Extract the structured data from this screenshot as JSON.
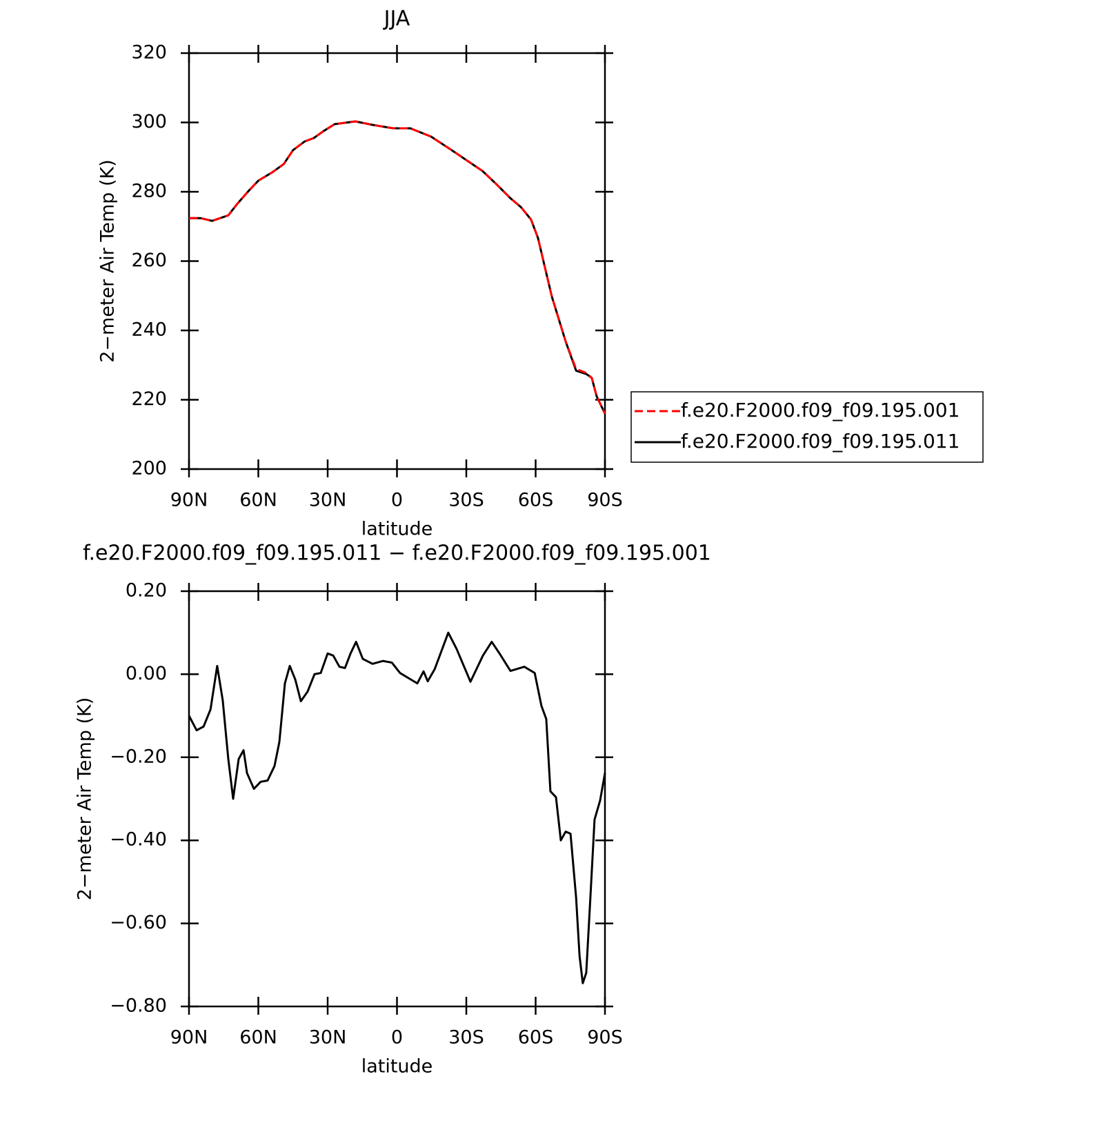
{
  "chart_data": [
    {
      "type": "line",
      "title": "JJA",
      "xlabel": "latitude",
      "ylabel": "2−meter Air Temp (K)",
      "xlim": [
        90,
        -90
      ],
      "ylim": [
        200,
        320
      ],
      "xticks": [
        {
          "value": 90,
          "label": "90N"
        },
        {
          "value": 60,
          "label": "60N"
        },
        {
          "value": 30,
          "label": "30N"
        },
        0,
        {
          "value": -30,
          "label": "30S"
        },
        {
          "value": -60,
          "label": "60S"
        },
        {
          "value": -90,
          "label": "90S"
        }
      ],
      "yticks": [
        200,
        220,
        240,
        260,
        280,
        300,
        320
      ],
      "legend": "outside-right",
      "x": [
        90,
        85,
        80,
        73,
        69,
        64,
        60,
        54,
        49,
        45,
        40,
        36,
        31.8,
        27,
        18,
        10.6,
        1.6,
        -5.8,
        -14.8,
        -23.7,
        -31.2,
        -37,
        -43,
        -49,
        -53.6,
        -58,
        -61,
        -67,
        -73,
        -77.5,
        -82,
        -84.3,
        -86.4,
        -90
      ],
      "series": [
        {
          "name": "f.e20.F2000.f09_f09.195.001",
          "color": "#ff0000",
          "style": "dashed",
          "values": [
            272.4,
            272.4,
            271.6,
            273.2,
            276.6,
            280.4,
            283.2,
            285.6,
            288,
            292,
            294.5,
            295.5,
            297.5,
            299.5,
            300.3,
            299.3,
            298.3,
            298.3,
            295.9,
            292,
            288.6,
            286,
            282.2,
            278.2,
            275.6,
            272,
            266.7,
            249.8,
            236.8,
            228.9,
            227.7,
            226.3,
            221,
            216
          ]
        },
        {
          "name": "f.e20.F2000.f09_f09.195.011",
          "color": "#000000",
          "style": "solid",
          "values": [
            272.4,
            272.4,
            271.6,
            273.2,
            276.6,
            280.4,
            283.2,
            285.6,
            288,
            292,
            294.5,
            295.5,
            297.5,
            299.5,
            300.3,
            299.3,
            298.3,
            298.3,
            295.9,
            292,
            288.6,
            286,
            282.2,
            278.2,
            275.6,
            272,
            266.7,
            249.8,
            236.8,
            228.4,
            227.4,
            226.3,
            221,
            216
          ]
        }
      ]
    },
    {
      "type": "line",
      "title": "f.e20.F2000.f09_f09.195.011 − f.e20.F2000.f09_f09.195.001",
      "xlabel": "latitude",
      "ylabel": "2−meter Air Temp (K)",
      "xlim": [
        90,
        -90
      ],
      "ylim": [
        -0.8,
        0.2
      ],
      "xticks": [
        {
          "value": 90,
          "label": "90N"
        },
        {
          "value": 60,
          "label": "60N"
        },
        {
          "value": 30,
          "label": "30N"
        },
        0,
        {
          "value": -30,
          "label": "30S"
        },
        {
          "value": -60,
          "label": "60S"
        },
        {
          "value": -90,
          "label": "90S"
        }
      ],
      "yticks": [
        {
          "value": -0.8,
          "label": "−0.80"
        },
        {
          "value": -0.6,
          "label": "−0.60"
        },
        {
          "value": -0.4,
          "label": "−0.40"
        },
        {
          "value": -0.2,
          "label": "−0.20"
        },
        {
          "value": 0,
          "label": "0.00"
        },
        {
          "value": 0.2,
          "label": "0.20"
        }
      ],
      "x": [
        90,
        86.7,
        83.7,
        80.7,
        77.8,
        75.4,
        73,
        70.9,
        68.5,
        66.4,
        64.9,
        61.9,
        59,
        56,
        53,
        50.9,
        48.5,
        46.4,
        44,
        41.6,
        38.7,
        35.7,
        33,
        30,
        27.6,
        24.9,
        22.5,
        20.1,
        17.7,
        14.8,
        10.6,
        6.1,
        2.2,
        -1.3,
        -6.1,
        -8.8,
        -11.5,
        -13.3,
        -16.3,
        -22.2,
        -25.8,
        -31.8,
        -37.2,
        -41,
        -44.6,
        -49.1,
        -55.1,
        -59.6,
        -62.5,
        -64.6,
        -66.4,
        -68.8,
        -70.9,
        -73,
        -75.1,
        -77.5,
        -79,
        -80.4,
        -81.9,
        -83.7,
        -85.5,
        -87.9,
        -90
      ],
      "series": [
        {
          "color": "#000000",
          "style": "solid",
          "values": [
            -0.1,
            -0.135,
            -0.126,
            -0.085,
            0.02,
            -0.063,
            -0.204,
            -0.3,
            -0.204,
            -0.183,
            -0.238,
            -0.276,
            -0.259,
            -0.256,
            -0.221,
            -0.163,
            -0.022,
            0.02,
            -0.013,
            -0.065,
            -0.042,
            0,
            0.003,
            0.05,
            0.045,
            0.018,
            0.015,
            0.05,
            0.078,
            0.037,
            0.025,
            0.032,
            0.028,
            0.003,
            -0.013,
            -0.022,
            0.007,
            -0.017,
            0.012,
            0.1,
            0.061,
            -0.018,
            0.045,
            0.078,
            0.048,
            0.008,
            0.018,
            0.003,
            -0.076,
            -0.108,
            -0.282,
            -0.296,
            -0.4,
            -0.379,
            -0.384,
            -0.537,
            -0.678,
            -0.744,
            -0.719,
            -0.537,
            -0.35,
            -0.304,
            -0.238
          ]
        }
      ]
    }
  ]
}
